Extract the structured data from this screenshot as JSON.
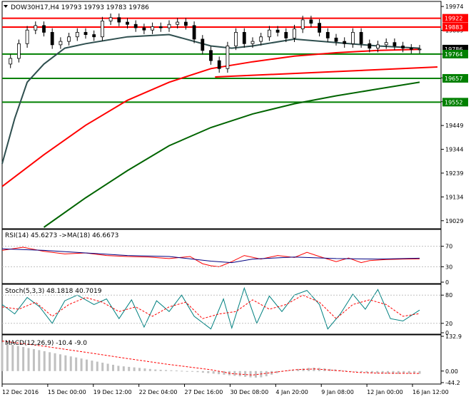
{
  "chart_data": [
    {
      "type": "candlestick",
      "title": "DOW30H17,H4  19793 19793 19783 19786",
      "ylim": [
        19000,
        19990
      ],
      "y_ticks": [
        19974,
        19869,
        19764,
        19659,
        19554,
        19449,
        19344,
        19239,
        19134,
        19029
      ],
      "x_ticks": [
        "12 Dec 2016",
        "15 Dec 00:00",
        "19 Dec 12:00",
        "22 Dec 04:00",
        "27 Dec 16:00",
        "30 Dec 08:00",
        "4 Jan 20:00",
        "9 Jan 08:00",
        "12 Jan 00:00",
        "16 Jan 12:00"
      ],
      "price_labels": [
        {
          "label": "19922",
          "value": 19922,
          "color": "#ff0000"
        },
        {
          "label": "19883",
          "value": 19883,
          "color": "#ff0000"
        },
        {
          "label": "19786",
          "value": 19786,
          "color": "#000000"
        },
        {
          "label": "19764",
          "value": 19764,
          "color": "#008000"
        },
        {
          "label": "19657",
          "value": 19657,
          "color": "#008000"
        },
        {
          "label": "19552",
          "value": 19552,
          "color": "#008000"
        }
      ],
      "horizontal_lines": [
        {
          "value": 19922,
          "color": "#ff0000"
        },
        {
          "value": 19883,
          "color": "#ff0000"
        },
        {
          "value": 19764,
          "color": "#008000"
        },
        {
          "value": 19657,
          "color": "#008000"
        },
        {
          "value": 19552,
          "color": "#008000"
        }
      ],
      "trendline": {
        "from": {
          "x": 0.51,
          "y": 19663
        },
        "to": {
          "x": 1.0,
          "y": 19707
        },
        "color": "#ff0000"
      },
      "close_path": [
        [
          0.0,
          19720
        ],
        [
          0.02,
          19745
        ],
        [
          0.04,
          19810
        ],
        [
          0.06,
          19870
        ],
        [
          0.08,
          19890
        ],
        [
          0.1,
          19860
        ],
        [
          0.12,
          19805
        ],
        [
          0.14,
          19820
        ],
        [
          0.16,
          19840
        ],
        [
          0.18,
          19860
        ],
        [
          0.2,
          19850
        ],
        [
          0.22,
          19840
        ],
        [
          0.24,
          19910
        ],
        [
          0.26,
          19925
        ],
        [
          0.28,
          19905
        ],
        [
          0.3,
          19895
        ],
        [
          0.32,
          19880
        ],
        [
          0.34,
          19870
        ],
        [
          0.36,
          19885
        ],
        [
          0.38,
          19880
        ],
        [
          0.4,
          19895
        ],
        [
          0.42,
          19905
        ],
        [
          0.44,
          19890
        ],
        [
          0.46,
          19830
        ],
        [
          0.48,
          19780
        ],
        [
          0.5,
          19735
        ],
        [
          0.52,
          19700
        ],
        [
          0.54,
          19800
        ],
        [
          0.56,
          19860
        ],
        [
          0.58,
          19810
        ],
        [
          0.6,
          19820
        ],
        [
          0.62,
          19840
        ],
        [
          0.64,
          19870
        ],
        [
          0.66,
          19860
        ],
        [
          0.68,
          19835
        ],
        [
          0.7,
          19875
        ],
        [
          0.72,
          19915
        ],
        [
          0.74,
          19900
        ],
        [
          0.76,
          19860
        ],
        [
          0.78,
          19835
        ],
        [
          0.8,
          19820
        ],
        [
          0.82,
          19810
        ],
        [
          0.84,
          19860
        ],
        [
          0.86,
          19810
        ],
        [
          0.88,
          19790
        ],
        [
          0.9,
          19805
        ],
        [
          0.92,
          19815
        ],
        [
          0.94,
          19800
        ],
        [
          0.96,
          19790
        ],
        [
          0.98,
          19785
        ],
        [
          1.0,
          19786
        ]
      ],
      "moving_averages": [
        {
          "color": "#ff0000",
          "points": [
            [
              0.0,
              19180
            ],
            [
              0.1,
              19320
            ],
            [
              0.2,
              19450
            ],
            [
              0.3,
              19560
            ],
            [
              0.4,
              19640
            ],
            [
              0.5,
              19700
            ],
            [
              0.6,
              19730
            ],
            [
              0.7,
              19755
            ],
            [
              0.8,
              19770
            ],
            [
              0.9,
              19780
            ],
            [
              1.0,
              19785
            ]
          ]
        },
        {
          "color": "#006400",
          "points": [
            [
              0.1,
              19000
            ],
            [
              0.2,
              19130
            ],
            [
              0.3,
              19250
            ],
            [
              0.4,
              19360
            ],
            [
              0.5,
              19440
            ],
            [
              0.6,
              19500
            ],
            [
              0.7,
              19545
            ],
            [
              0.8,
              19580
            ],
            [
              0.9,
              19610
            ],
            [
              1.0,
              19640
            ]
          ]
        },
        {
          "color": "#2f4f4f",
          "points": [
            [
              0.0,
              19280
            ],
            [
              0.03,
              19480
            ],
            [
              0.06,
              19640
            ],
            [
              0.1,
              19720
            ],
            [
              0.15,
              19790
            ],
            [
              0.2,
              19810
            ],
            [
              0.3,
              19840
            ],
            [
              0.4,
              19850
            ],
            [
              0.5,
              19800
            ],
            [
              0.55,
              19790
            ],
            [
              0.6,
              19800
            ],
            [
              0.7,
              19830
            ],
            [
              0.8,
              19815
            ],
            [
              0.9,
              19800
            ],
            [
              1.0,
              19790
            ]
          ]
        }
      ]
    },
    {
      "type": "line",
      "title": "RSI(14) 45.6273  ->MA(18) 46.6673",
      "ylim": [
        0,
        100
      ],
      "y_ticks": [
        70,
        30,
        0
      ],
      "series": [
        {
          "color": "#ff0000",
          "points": [
            [
              0.0,
              62
            ],
            [
              0.05,
              68
            ],
            [
              0.1,
              60
            ],
            [
              0.15,
              55
            ],
            [
              0.2,
              57
            ],
            [
              0.25,
              52
            ],
            [
              0.3,
              50
            ],
            [
              0.35,
              49
            ],
            [
              0.4,
              46
            ],
            [
              0.45,
              50
            ],
            [
              0.48,
              36
            ],
            [
              0.5,
              32
            ],
            [
              0.52,
              30
            ],
            [
              0.55,
              40
            ],
            [
              0.58,
              52
            ],
            [
              0.62,
              45
            ],
            [
              0.66,
              52
            ],
            [
              0.7,
              48
            ],
            [
              0.73,
              58
            ],
            [
              0.76,
              50
            ],
            [
              0.8,
              40
            ],
            [
              0.83,
              47
            ],
            [
              0.86,
              38
            ],
            [
              0.88,
              42
            ],
            [
              0.92,
              44
            ],
            [
              0.96,
              45
            ],
            [
              1.0,
              45.6
            ]
          ]
        },
        {
          "color": "#000080",
          "points": [
            [
              0.0,
              65
            ],
            [
              0.1,
              62
            ],
            [
              0.2,
              57
            ],
            [
              0.3,
              52
            ],
            [
              0.4,
              50
            ],
            [
              0.5,
              41
            ],
            [
              0.55,
              38
            ],
            [
              0.6,
              45
            ],
            [
              0.7,
              49
            ],
            [
              0.8,
              46
            ],
            [
              0.9,
              45
            ],
            [
              1.0,
              46.7
            ]
          ]
        }
      ]
    },
    {
      "type": "line",
      "title": "Stoch(5,3,3) 48.1818 40.7019",
      "ylim": [
        0,
        100
      ],
      "y_ticks": [
        80,
        20,
        0
      ],
      "series": [
        {
          "color": "#008080",
          "points": [
            [
              0.0,
              60
            ],
            [
              0.03,
              40
            ],
            [
              0.06,
              75
            ],
            [
              0.09,
              55
            ],
            [
              0.12,
              20
            ],
            [
              0.15,
              68
            ],
            [
              0.18,
              80
            ],
            [
              0.22,
              60
            ],
            [
              0.25,
              72
            ],
            [
              0.28,
              30
            ],
            [
              0.31,
              70
            ],
            [
              0.34,
              12
            ],
            [
              0.37,
              68
            ],
            [
              0.4,
              45
            ],
            [
              0.43,
              80
            ],
            [
              0.46,
              35
            ],
            [
              0.5,
              8
            ],
            [
              0.53,
              72
            ],
            [
              0.55,
              10
            ],
            [
              0.58,
              95
            ],
            [
              0.61,
              20
            ],
            [
              0.64,
              78
            ],
            [
              0.67,
              45
            ],
            [
              0.7,
              80
            ],
            [
              0.73,
              90
            ],
            [
              0.76,
              60
            ],
            [
              0.78,
              8
            ],
            [
              0.81,
              40
            ],
            [
              0.84,
              82
            ],
            [
              0.87,
              50
            ],
            [
              0.9,
              92
            ],
            [
              0.93,
              30
            ],
            [
              0.96,
              25
            ],
            [
              1.0,
              48.2
            ]
          ]
        },
        {
          "color": "#ff0000",
          "points": [
            [
              0.0,
              55
            ],
            [
              0.04,
              50
            ],
            [
              0.08,
              65
            ],
            [
              0.12,
              35
            ],
            [
              0.16,
              60
            ],
            [
              0.2,
              75
            ],
            [
              0.24,
              65
            ],
            [
              0.28,
              45
            ],
            [
              0.32,
              55
            ],
            [
              0.36,
              35
            ],
            [
              0.4,
              55
            ],
            [
              0.44,
              65
            ],
            [
              0.48,
              30
            ],
            [
              0.52,
              40
            ],
            [
              0.56,
              45
            ],
            [
              0.6,
              70
            ],
            [
              0.64,
              50
            ],
            [
              0.68,
              60
            ],
            [
              0.72,
              80
            ],
            [
              0.76,
              65
            ],
            [
              0.8,
              30
            ],
            [
              0.84,
              60
            ],
            [
              0.88,
              70
            ],
            [
              0.92,
              60
            ],
            [
              0.96,
              35
            ],
            [
              1.0,
              40.7
            ]
          ]
        }
      ]
    },
    {
      "type": "bar",
      "title": "MACD(12,26,9) -10.4 -9.0",
      "ylim": [
        -44.2,
        132.9
      ],
      "y_ticks": [
        132.9,
        0.0,
        -44.2
      ],
      "tick_labels": [
        "132.9",
        "0.00",
        "-44.2"
      ],
      "histogram": [
        110,
        105,
        100,
        96,
        92,
        88,
        84,
        80,
        76,
        72,
        68,
        64,
        60,
        56,
        52,
        48,
        44,
        40,
        36,
        32,
        28,
        24,
        20,
        18,
        16,
        14,
        12,
        10,
        8,
        6,
        5,
        4,
        3,
        2,
        1,
        0,
        -2,
        -4,
        -6,
        -8,
        -10,
        -12,
        -14,
        -16,
        -18,
        -20,
        -22,
        -24,
        -25,
        -24,
        -20,
        -14,
        -8,
        -2,
        2,
        5,
        8,
        10,
        12,
        13,
        12,
        10,
        8,
        6,
        4,
        2,
        0,
        -2,
        -4,
        -6,
        -8,
        -9,
        -10,
        -10,
        -11,
        -11,
        -10,
        -10,
        -10,
        -10.4
      ],
      "signal": [
        [
          0.0,
          115
        ],
        [
          0.1,
          95
        ],
        [
          0.2,
          72
        ],
        [
          0.3,
          48
        ],
        [
          0.4,
          25
        ],
        [
          0.5,
          5
        ],
        [
          0.55,
          -10
        ],
        [
          0.6,
          -15
        ],
        [
          0.65,
          -5
        ],
        [
          0.7,
          5
        ],
        [
          0.75,
          8
        ],
        [
          0.8,
          2
        ],
        [
          0.85,
          -5
        ],
        [
          0.9,
          -8
        ],
        [
          1.0,
          -9.0
        ]
      ]
    }
  ]
}
